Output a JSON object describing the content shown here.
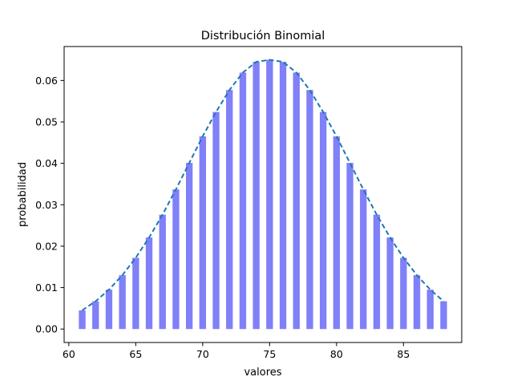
{
  "chart_data": {
    "type": "bar",
    "title": "Distribución Binomial",
    "xlabel": "valores",
    "ylabel": "probabilidad",
    "xlim": [
      59.65,
      89.35
    ],
    "ylim": [
      -0.00325,
      0.0682
    ],
    "xticks": [
      60,
      65,
      70,
      75,
      80,
      85
    ],
    "xtick_labels": [
      "60",
      "65",
      "70",
      "75",
      "80",
      "85"
    ],
    "yticks": [
      0.0,
      0.01,
      0.02,
      0.03,
      0.04,
      0.05,
      0.06
    ],
    "ytick_labels": [
      "0.00",
      "0.01",
      "0.02",
      "0.03",
      "0.04",
      "0.05",
      "0.06"
    ],
    "grid": false,
    "bars": {
      "x": [
        61,
        62,
        63,
        64,
        65,
        66,
        67,
        68,
        69,
        70,
        71,
        72,
        73,
        74,
        75,
        76,
        77,
        78,
        79,
        80,
        81,
        82,
        83,
        84,
        85,
        86,
        87,
        88
      ],
      "values": [
        0.0045,
        0.0067,
        0.0095,
        0.013,
        0.0172,
        0.0221,
        0.0276,
        0.0337,
        0.0401,
        0.0465,
        0.0524,
        0.0577,
        0.0619,
        0.0645,
        0.065,
        0.0645,
        0.0619,
        0.0577,
        0.0524,
        0.0465,
        0.0401,
        0.0337,
        0.0276,
        0.0221,
        0.0172,
        0.013,
        0.0095,
        0.0067
      ],
      "color": "#8080f8"
    },
    "line": {
      "style": "dashed",
      "color": "#1f77b4",
      "x": [
        61,
        62,
        63,
        64,
        65,
        66,
        67,
        68,
        69,
        70,
        71,
        72,
        73,
        74,
        75,
        76,
        77,
        78,
        79,
        80,
        81,
        82,
        83,
        84,
        85,
        86,
        87,
        88
      ],
      "values": [
        0.0045,
        0.0067,
        0.0095,
        0.013,
        0.0172,
        0.0221,
        0.0276,
        0.0337,
        0.0401,
        0.0465,
        0.0524,
        0.0577,
        0.0619,
        0.0645,
        0.065,
        0.0645,
        0.0619,
        0.0577,
        0.0524,
        0.0465,
        0.0401,
        0.0337,
        0.0276,
        0.0221,
        0.0172,
        0.013,
        0.0095,
        0.0067
      ]
    }
  }
}
